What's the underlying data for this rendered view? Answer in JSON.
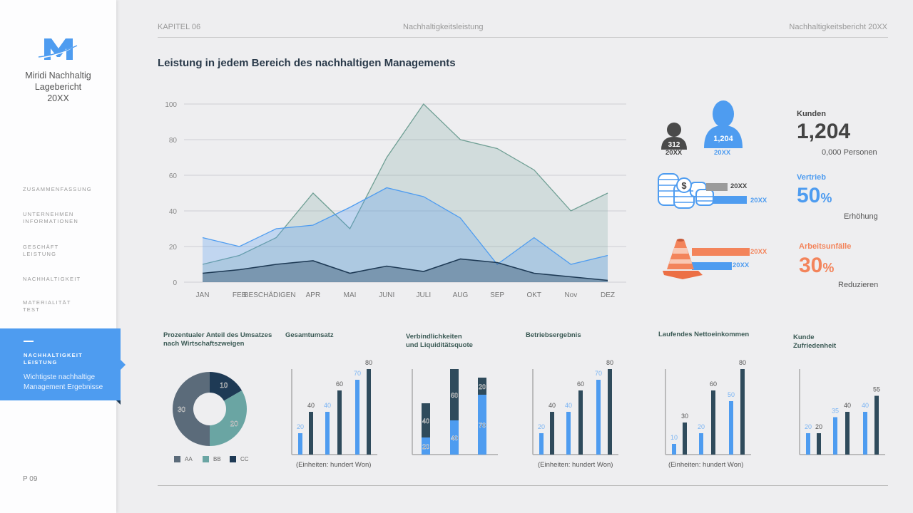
{
  "sidebar": {
    "brand_line1": "Miridi Nachhaltig",
    "brand_line2": "Lagebericht",
    "brand_line3": "20XX",
    "items": [
      {
        "label_1": "ZUSAMMENFASSUNG",
        "label_2": ""
      },
      {
        "label_1": "UNTERNEHMEN",
        "label_2": "INFORMATIONEN"
      },
      {
        "label_1": "GESCHÄFT",
        "label_2": "LEISTUNG"
      },
      {
        "label_1": "NACHHALTIGKEIT",
        "label_2": ""
      },
      {
        "label_1": "MATERIALITÄT",
        "label_2": "TEST"
      }
    ],
    "active": {
      "label_1": "NACHHALTIGKEIT",
      "label_2": "LEISTUNG",
      "sub_1": "Wichtigste nachhaltige",
      "sub_2": "Management Ergebnisse"
    },
    "page": "P 09"
  },
  "header": {
    "chapter": "KAPITEL 06",
    "section": "Nachhaltigkeitsleistung",
    "report": "Nachhaltigkeitsbericht 20XX"
  },
  "title": "Leistung in jedem Bereich des nachhaltigen Managements",
  "kpis": {
    "customers": {
      "small_value": "312",
      "small_year": "20XX",
      "big_value": "1,204",
      "big_year": "20XX",
      "label": "Kunden",
      "value": "1,204",
      "sub": "0,000 Personen"
    },
    "sales": {
      "bar1_year": "20XX",
      "bar2_year": "20XX",
      "label": "Vertrieb",
      "value": "50",
      "unit": "%",
      "sub": "Erhöhung"
    },
    "accidents": {
      "bar1_year": "20XX",
      "bar2_year": "20XX",
      "label": "Arbeitsunfälle",
      "value": "30",
      "unit": "%",
      "sub": "Reduzieren"
    }
  },
  "colors": {
    "blue": "#4e9cf0",
    "dark": "#2f4b5c",
    "teal": "#6aa5a3",
    "slate": "#5b6b7a",
    "navy": "#1e3a55",
    "orange": "#f3845b",
    "gray": "#9b9b9b"
  },
  "chart_data": [
    {
      "type": "area",
      "title": "Leistung in jedem Bereich des nachhaltigen Managements",
      "categories": [
        "JAN",
        "FEB",
        "BESCHÄDIGEN",
        "APR",
        "MAI",
        "JUNI",
        "JULI",
        "AUG",
        "SEP",
        "OKT",
        "Nov",
        "DEZ"
      ],
      "series": [
        {
          "name": "Series 1 (green)",
          "color": "#6f9f94",
          "values": [
            10,
            15,
            25,
            50,
            30,
            70,
            100,
            80,
            75,
            63,
            40,
            50
          ]
        },
        {
          "name": "Series 2 (blue)",
          "color": "#4e9cf0",
          "values": [
            25,
            20,
            30,
            32,
            42,
            53,
            48,
            36,
            10,
            25,
            10,
            15
          ]
        },
        {
          "name": "Series 3 (navy)",
          "color": "#1e3a55",
          "values": [
            5,
            7,
            10,
            12,
            5,
            9,
            6,
            13,
            11,
            5,
            3,
            1
          ]
        }
      ],
      "yticks": [
        0,
        20,
        40,
        60,
        80,
        100
      ],
      "ylim": [
        0,
        100
      ],
      "grid": true
    },
    {
      "type": "pie",
      "title": "Prozentualer Anteil des Umsatzes nach Wirtschaftszweigen",
      "title_1": "Prozentualer Anteil des Umsatzes",
      "title_2": "nach Wirtschaftszweigen",
      "categories": [
        "AA",
        "BB",
        "CC"
      ],
      "values": [
        30,
        20,
        10
      ],
      "colors": [
        "#5b6b7a",
        "#6aa5a3",
        "#1e3a55"
      ],
      "donut": true
    },
    {
      "type": "bar",
      "title": "Gesamtumsatz",
      "values": [
        20,
        40,
        40,
        60,
        70,
        80
      ],
      "colors": [
        "blue",
        "dark",
        "blue",
        "dark",
        "blue",
        "dark"
      ],
      "unit_note": "(Einheiten: hundert Won)"
    },
    {
      "type": "bar",
      "title": "Verbindlichkeiten und Liquiditätsquote",
      "title_1": "Verbindlichkeiten",
      "title_2": "und Liquiditätsquote",
      "stacked": true,
      "series": [
        {
          "name": "bottom (blue)",
          "values": [
            20,
            40,
            70
          ]
        },
        {
          "name": "top (dark)",
          "values": [
            40,
            60,
            20
          ]
        }
      ]
    },
    {
      "type": "bar",
      "title": "Betriebsergebnis",
      "values": [
        20,
        40,
        40,
        60,
        70,
        80
      ],
      "colors": [
        "blue",
        "dark",
        "blue",
        "dark",
        "blue",
        "dark"
      ],
      "unit_note": "(Einheiten: hundert Won)"
    },
    {
      "type": "bar",
      "title": "Laufendes Nettoeinkommen",
      "values": [
        10,
        30,
        20,
        60,
        50,
        80
      ],
      "colors": [
        "blue",
        "dark",
        "blue",
        "dark",
        "blue",
        "dark"
      ],
      "unit_note": "(Einheiten: hundert Won)"
    },
    {
      "type": "bar",
      "title": "Kunde Zufriedenheit",
      "title_1": "Kunde",
      "title_2": "Zufriedenheit",
      "values": [
        20,
        20,
        35,
        40,
        40,
        55
      ],
      "colors": [
        "blue",
        "dark",
        "blue",
        "dark",
        "blue",
        "dark"
      ]
    }
  ]
}
